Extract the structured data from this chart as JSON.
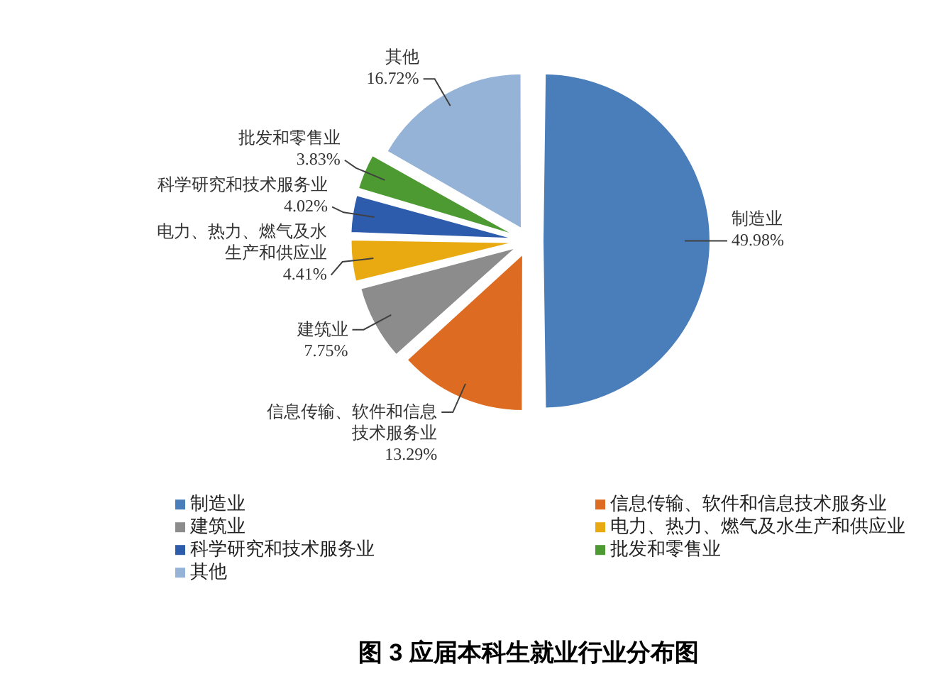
{
  "chart_data": {
    "type": "pie",
    "title": "图 3 应届本科生就业行业分布图",
    "categories": [
      "制造业",
      "信息传输、软件和信息技术服务业",
      "建筑业",
      "电力、热力、燃气及水生产和供应业",
      "科学研究和技术服务业",
      "批发和零售业",
      "其他"
    ],
    "values": [
      49.98,
      13.29,
      7.75,
      4.41,
      4.02,
      3.83,
      16.72
    ],
    "colors": [
      "#4a7ebb",
      "#dd6c22",
      "#8c8c8c",
      "#e8aa10",
      "#2e5cad",
      "#4e9a32",
      "#95b3d7"
    ],
    "value_labels": [
      "49.98%",
      "13.29%",
      "7.75%",
      "4.41%",
      "4.02%",
      "3.83%",
      "16.72%"
    ],
    "legend": "bottom"
  }
}
